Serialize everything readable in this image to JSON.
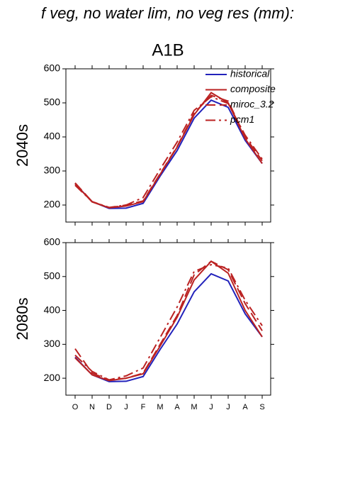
{
  "title": "f veg, no water lim, no veg res (mm):",
  "subtitle": "A1B",
  "chart_data": [
    {
      "type": "line",
      "ylabel": "2040s",
      "categories": [
        null,
        null,
        null,
        null,
        null,
        null,
        null,
        null,
        null,
        null,
        null,
        null
      ],
      "ylim": [
        150,
        600
      ],
      "yticks": [
        200,
        300,
        400,
        500,
        600
      ],
      "legend": "upper right",
      "series": [
        {
          "name": "historical",
          "color": "#2222bb",
          "style": "solid",
          "values": [
            262,
            210,
            190,
            191,
            205,
            285,
            360,
            455,
            508,
            487,
            390,
            322
          ]
        },
        {
          "name": "composite",
          "color": "#bb2222",
          "style": "solid",
          "values": [
            262,
            209,
            192,
            197,
            210,
            290,
            370,
            465,
            530,
            500,
            395,
            322
          ]
        },
        {
          "name": "miroc_3.2",
          "color": "#bb2222",
          "style": "dashed",
          "values": [
            265,
            210,
            192,
            200,
            212,
            292,
            372,
            470,
            522,
            505,
            400,
            330
          ]
        },
        {
          "name": "pcm1",
          "color": "#bb2222",
          "style": "dashdot",
          "values": [
            258,
            210,
            193,
            200,
            222,
            305,
            385,
            478,
            518,
            498,
            405,
            335
          ]
        }
      ]
    },
    {
      "type": "line",
      "ylabel": "2080s",
      "categories": [
        "O",
        "N",
        "D",
        "J",
        "F",
        "M",
        "A",
        "M",
        "J",
        "J",
        "A",
        "S"
      ],
      "ylim": [
        150,
        600
      ],
      "yticks": [
        200,
        300,
        400,
        500,
        600
      ],
      "series": [
        {
          "color": "#2222bb",
          "style": "solid",
          "values": [
            262,
            210,
            190,
            191,
            205,
            285,
            360,
            455,
            508,
            487,
            390,
            322
          ]
        },
        {
          "color": "#bb2222",
          "style": "solid",
          "values": [
            260,
            210,
            193,
            200,
            213,
            295,
            380,
            490,
            545,
            510,
            400,
            322
          ]
        },
        {
          "color": "#bb2222",
          "style": "dashed",
          "values": [
            287,
            215,
            195,
            200,
            215,
            300,
            385,
            505,
            545,
            520,
            420,
            340
          ]
        },
        {
          "color": "#bb2222",
          "style": "dashdot",
          "values": [
            268,
            220,
            195,
            207,
            230,
            320,
            410,
            515,
            535,
            525,
            430,
            355
          ]
        }
      ]
    }
  ]
}
